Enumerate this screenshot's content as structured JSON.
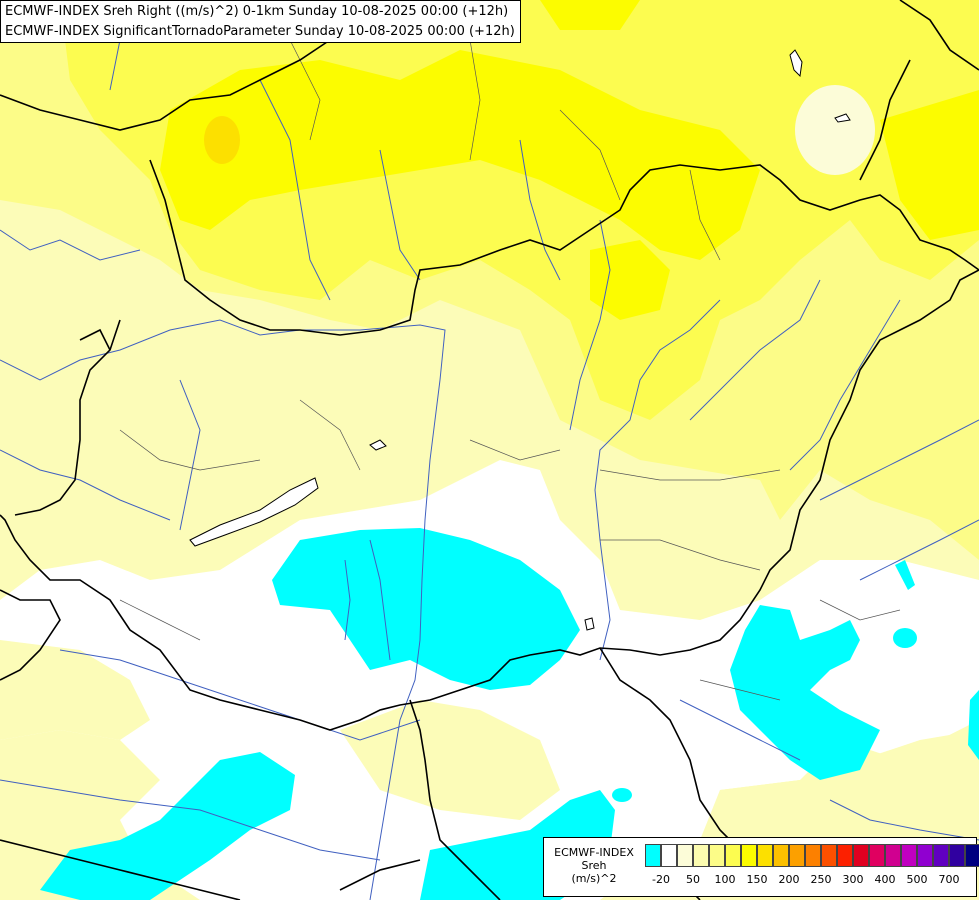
{
  "title": {
    "line1": "ECMWF-INDEX Sreh Right ((m/s)^2) 0-1km Sunday 10-08-2025 00:00 (+12h)",
    "line2": "ECMWF-INDEX SignificantTornadoParameter Sunday 10-08-2025 00:00 (+12h)"
  },
  "legend": {
    "line1": "ECMWF-INDEX",
    "line2": "Sreh",
    "line3": "(m/s)^2",
    "colors": [
      "#00ffff",
      "#ffffff",
      "#fcfcd8",
      "#fcfcb0",
      "#fcfc88",
      "#fcfc50",
      "#fcfc00",
      "#fce000",
      "#fcc000",
      "#fca000",
      "#fc8000",
      "#fc5000",
      "#fc2000",
      "#e00020",
      "#e00060",
      "#d00090",
      "#c000c0",
      "#9000d0",
      "#6000c0",
      "#3000a0",
      "#000080"
    ],
    "ticks": [
      "-20",
      "50",
      "100",
      "150",
      "200",
      "250",
      "300",
      "400",
      "500",
      "700"
    ]
  },
  "colors": {
    "cyan": "#00ffff",
    "white": "#ffffff",
    "pale_yellow": "#fcfcb8",
    "light_yellow": "#fcfc88",
    "yellow": "#fcfc50",
    "bright_yellow": "#fcfc00",
    "gold": "#fce000",
    "border": "#000000",
    "river": "#4060c0"
  }
}
